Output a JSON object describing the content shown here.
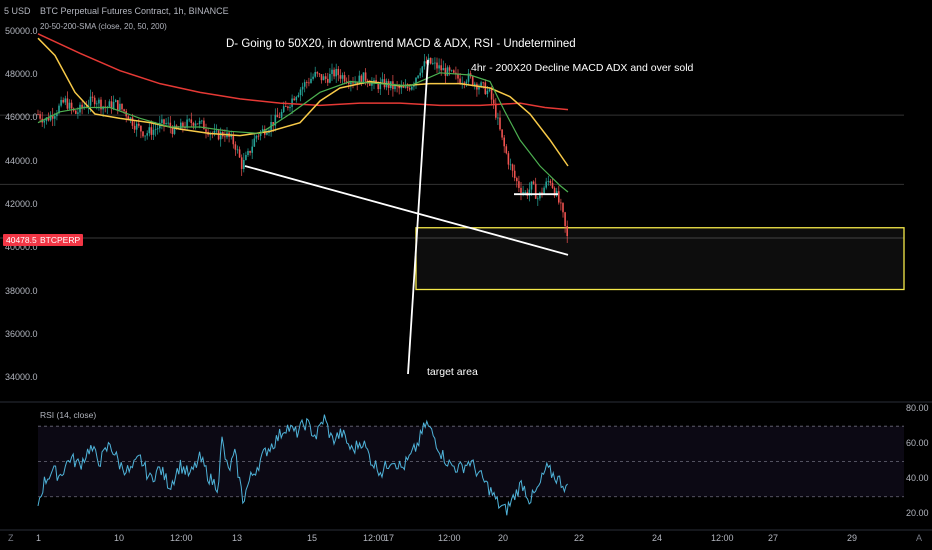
{
  "header": {
    "currency": "5 USD",
    "title": "BTC Perpetual Futures Contract, 1h, BINANCE",
    "indicator": "20-50-200-SMA (close, 20, 50, 200)"
  },
  "price_tag": {
    "value": "40478.5",
    "symbol": "BTCPERP"
  },
  "annotations": {
    "top": "D- Going to 50X20, in downtrend MACD & ADX, RSI - Undetermined",
    "right": "4hr  - 200X20 Decline MACD ADX and over sold",
    "target": "target area"
  },
  "rsi_title": "RSI (14, close)",
  "corner_left": "Z",
  "corner_right": "A",
  "colors": {
    "up": "#26a69a",
    "down": "#ef5350",
    "sma20": "#4caf50",
    "sma50": "#f7c948",
    "sma200": "#e53935",
    "rsi": "#4fb3d9",
    "box": "#f5e94a",
    "line": "#ffffff"
  },
  "chart_data": {
    "type": "candlestick",
    "price_axis": {
      "ticks": [
        "50000.0",
        "48000.0",
        "46000.0",
        "44000.0",
        "42000.0",
        "40000.0",
        "38000.0",
        "36000.0",
        "34000.0"
      ],
      "range": [
        33000,
        51000
      ]
    },
    "x_axis": {
      "ticks": [
        "1",
        "10",
        "12:00",
        "13",
        "15",
        "12:00",
        "17",
        "12:00",
        "20",
        "22",
        "24",
        "12:00",
        "27",
        "29"
      ]
    },
    "rsi_axis": {
      "ticks": [
        "80.00",
        "60.00",
        "40.00",
        "20.00"
      ],
      "range": [
        14,
        82
      ],
      "bands": [
        30,
        70
      ]
    },
    "price_path": [
      [
        38,
        46200
      ],
      [
        45,
        45900
      ],
      [
        55,
        46300
      ],
      [
        65,
        46800
      ],
      [
        75,
        46200
      ],
      [
        85,
        46600
      ],
      [
        95,
        46900
      ],
      [
        105,
        46500
      ],
      [
        115,
        46700
      ],
      [
        125,
        46300
      ],
      [
        135,
        45700
      ],
      [
        145,
        45300
      ],
      [
        155,
        45500
      ],
      [
        165,
        45800
      ],
      [
        175,
        45400
      ],
      [
        185,
        45700
      ],
      [
        195,
        45900
      ],
      [
        205,
        45600
      ],
      [
        215,
        45200
      ],
      [
        225,
        45300
      ],
      [
        235,
        44800
      ],
      [
        242,
        43800
      ],
      [
        248,
        44300
      ],
      [
        256,
        45200
      ],
      [
        265,
        45500
      ],
      [
        275,
        45900
      ],
      [
        285,
        46400
      ],
      [
        295,
        47100
      ],
      [
        305,
        47600
      ],
      [
        315,
        48000
      ],
      [
        325,
        47800
      ],
      [
        335,
        48100
      ],
      [
        345,
        47900
      ],
      [
        355,
        47700
      ],
      [
        365,
        47900
      ],
      [
        375,
        47500
      ],
      [
        385,
        47600
      ],
      [
        395,
        47400
      ],
      [
        405,
        47300
      ],
      [
        412,
        47600
      ],
      [
        420,
        48300
      ],
      [
        428,
        48600
      ],
      [
        436,
        48400
      ],
      [
        444,
        48200
      ],
      [
        452,
        48000
      ],
      [
        460,
        47800
      ],
      [
        468,
        47900
      ],
      [
        476,
        47600
      ],
      [
        484,
        47400
      ],
      [
        490,
        47100
      ],
      [
        496,
        46200
      ],
      [
        502,
        45000
      ],
      [
        508,
        44100
      ],
      [
        514,
        43300
      ],
      [
        520,
        42800
      ],
      [
        526,
        42500
      ],
      [
        532,
        42900
      ],
      [
        538,
        42300
      ],
      [
        544,
        42800
      ],
      [
        550,
        43200
      ],
      [
        556,
        42500
      ],
      [
        562,
        41700
      ],
      [
        567,
        40478
      ]
    ],
    "sma20_path": [
      [
        38,
        45800
      ],
      [
        60,
        46300
      ],
      [
        85,
        46500
      ],
      [
        110,
        46500
      ],
      [
        140,
        46000
      ],
      [
        170,
        45600
      ],
      [
        200,
        45600
      ],
      [
        230,
        45400
      ],
      [
        260,
        45300
      ],
      [
        290,
        46200
      ],
      [
        320,
        47200
      ],
      [
        350,
        47700
      ],
      [
        380,
        47600
      ],
      [
        410,
        47500
      ],
      [
        440,
        48100
      ],
      [
        470,
        48000
      ],
      [
        490,
        47700
      ],
      [
        505,
        46300
      ],
      [
        520,
        45000
      ],
      [
        540,
        43800
      ],
      [
        560,
        42900
      ],
      [
        568,
        42600
      ]
    ],
    "sma50_path": [
      [
        38,
        49700
      ],
      [
        55,
        48900
      ],
      [
        75,
        47200
      ],
      [
        95,
        46200
      ],
      [
        120,
        46000
      ],
      [
        150,
        45800
      ],
      [
        180,
        45500
      ],
      [
        210,
        45300
      ],
      [
        240,
        45200
      ],
      [
        270,
        45400
      ],
      [
        300,
        45800
      ],
      [
        320,
        46800
      ],
      [
        340,
        47400
      ],
      [
        370,
        47700
      ],
      [
        400,
        47500
      ],
      [
        430,
        47600
      ],
      [
        460,
        47600
      ],
      [
        490,
        47400
      ],
      [
        510,
        47000
      ],
      [
        530,
        46200
      ],
      [
        550,
        45000
      ],
      [
        568,
        43800
      ]
    ],
    "sma200_path": [
      [
        38,
        49900
      ],
      [
        80,
        49000
      ],
      [
        120,
        48200
      ],
      [
        160,
        47600
      ],
      [
        200,
        47200
      ],
      [
        240,
        46900
      ],
      [
        280,
        46700
      ],
      [
        320,
        46600
      ],
      [
        360,
        46700
      ],
      [
        400,
        46700
      ],
      [
        440,
        46600
      ],
      [
        480,
        46600
      ],
      [
        520,
        46700
      ],
      [
        545,
        46500
      ],
      [
        568,
        46400
      ]
    ],
    "rsi_path": [
      [
        38,
        26
      ],
      [
        44,
        38
      ],
      [
        52,
        45
      ],
      [
        60,
        42
      ],
      [
        70,
        52
      ],
      [
        80,
        48
      ],
      [
        90,
        58
      ],
      [
        100,
        50
      ],
      [
        110,
        60
      ],
      [
        120,
        48
      ],
      [
        130,
        44
      ],
      [
        140,
        52
      ],
      [
        150,
        40
      ],
      [
        160,
        46
      ],
      [
        170,
        36
      ],
      [
        180,
        48
      ],
      [
        190,
        42
      ],
      [
        200,
        52
      ],
      [
        210,
        40
      ],
      [
        218,
        36
      ],
      [
        222,
        62
      ],
      [
        228,
        44
      ],
      [
        235,
        54
      ],
      [
        243,
        28
      ],
      [
        250,
        40
      ],
      [
        258,
        48
      ],
      [
        266,
        56
      ],
      [
        276,
        62
      ],
      [
        286,
        70
      ],
      [
        296,
        66
      ],
      [
        306,
        72
      ],
      [
        316,
        64
      ],
      [
        324,
        75
      ],
      [
        332,
        62
      ],
      [
        342,
        66
      ],
      [
        352,
        56
      ],
      [
        362,
        62
      ],
      [
        372,
        50
      ],
      [
        382,
        44
      ],
      [
        392,
        52
      ],
      [
        402,
        46
      ],
      [
        410,
        52
      ],
      [
        418,
        60
      ],
      [
        426,
        72
      ],
      [
        434,
        64
      ],
      [
        442,
        54
      ],
      [
        450,
        48
      ],
      [
        460,
        46
      ],
      [
        470,
        50
      ],
      [
        480,
        42
      ],
      [
        490,
        34
      ],
      [
        498,
        26
      ],
      [
        506,
        22
      ],
      [
        514,
        30
      ],
      [
        522,
        38
      ],
      [
        530,
        28
      ],
      [
        538,
        34
      ],
      [
        546,
        46
      ],
      [
        554,
        42
      ],
      [
        562,
        38
      ],
      [
        568,
        34
      ]
    ],
    "lines": [
      {
        "name": "downtrend-support",
        "x1": 245,
        "y1": 43800,
        "x2": 568,
        "y2": 39700
      },
      {
        "name": "target-vertical-left",
        "x1": 408,
        "y1": 34200,
        "x2": 428,
        "y2": 48700
      },
      {
        "name": "short-support-mark",
        "x1": 514,
        "y1": 42500,
        "x2": 558,
        "y2": 42500
      }
    ],
    "target_box": {
      "y_top": 40950,
      "y_bottom": 38100,
      "x_start": 416
    }
  }
}
